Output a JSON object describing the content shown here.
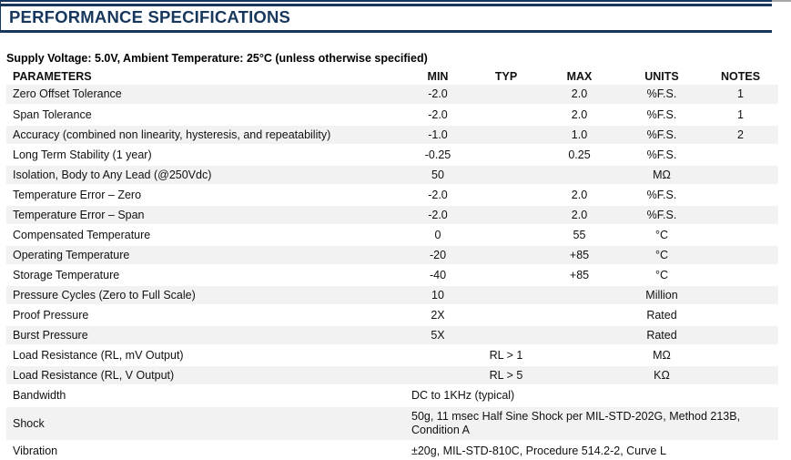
{
  "page": {
    "title": "PERFORMANCE SPECIFICATIONS",
    "subtitle": "Supply Voltage: 5.0V, Ambient Temperature: 25°C (unless otherwise specified)"
  },
  "colors": {
    "accent_navy": "#17375D",
    "stripe_gray": "#F2F2F2"
  },
  "table": {
    "columns": [
      "PARAMETERS",
      "MIN",
      "TYP",
      "MAX",
      "UNITS",
      "NOTES"
    ],
    "rows": [
      {
        "parameter": "Zero Offset Tolerance",
        "min": "-2.0",
        "typ": "",
        "max": "2.0",
        "units": "%F.S.",
        "notes": "1"
      },
      {
        "parameter": "Span Tolerance",
        "min": "-2.0",
        "typ": "",
        "max": "2.0",
        "units": "%F.S.",
        "notes": "1"
      },
      {
        "parameter": "Accuracy (combined non linearity, hysteresis, and repeatability)",
        "min": "-1.0",
        "typ": "",
        "max": "1.0",
        "units": "%F.S.",
        "notes": "2"
      },
      {
        "parameter": "Long Term Stability (1 year)",
        "min": "-0.25",
        "typ": "",
        "max": "0.25",
        "units": "%F.S.",
        "notes": ""
      },
      {
        "parameter": "Isolation, Body to Any Lead (@250Vdc)",
        "min": "50",
        "typ": "",
        "max": "",
        "units": "MΩ",
        "notes": ""
      },
      {
        "parameter": "Temperature Error – Zero",
        "min": "-2.0",
        "typ": "",
        "max": "2.0",
        "units": "%F.S.",
        "notes": ""
      },
      {
        "parameter": "Temperature Error – Span",
        "min": "-2.0",
        "typ": "",
        "max": "2.0",
        "units": "%F.S.",
        "notes": ""
      },
      {
        "parameter": "Compensated Temperature",
        "min": "0",
        "typ": "",
        "max": "55",
        "units": "°C",
        "notes": ""
      },
      {
        "parameter": "Operating Temperature",
        "min": "-20",
        "typ": "",
        "max": "+85",
        "units": "°C",
        "notes": ""
      },
      {
        "parameter": "Storage Temperature",
        "min": "-40",
        "typ": "",
        "max": "+85",
        "units": "°C",
        "notes": ""
      },
      {
        "parameter": "Pressure Cycles (Zero to Full Scale)",
        "min": "10",
        "typ": "",
        "max": "",
        "units": "Million",
        "notes": ""
      },
      {
        "parameter": "Proof Pressure",
        "min": "2X",
        "typ": "",
        "max": "",
        "units": "Rated",
        "notes": ""
      },
      {
        "parameter": "Burst Pressure",
        "min": "5X",
        "typ": "",
        "max": "",
        "units": "Rated",
        "notes": ""
      },
      {
        "parameter": "Load Resistance (RL, mV Output)",
        "min": "",
        "typ": "RL > 1",
        "max": "",
        "units": "MΩ",
        "notes": ""
      },
      {
        "parameter": "Load Resistance (RL, V Output)",
        "min": "",
        "typ": "RL > 5",
        "max": "",
        "units": "KΩ",
        "notes": ""
      },
      {
        "parameter": "Bandwidth",
        "value_span": "DC to 1KHz (typical)"
      },
      {
        "parameter": "Shock",
        "value_span": "50g, 11 msec Half Sine Shock per MIL-STD-202G, Method 213B, Condition A"
      },
      {
        "parameter": "Vibration",
        "value_span": "±20g, MIL-STD-810C, Procedure 514.2-2, Curve L"
      }
    ]
  }
}
